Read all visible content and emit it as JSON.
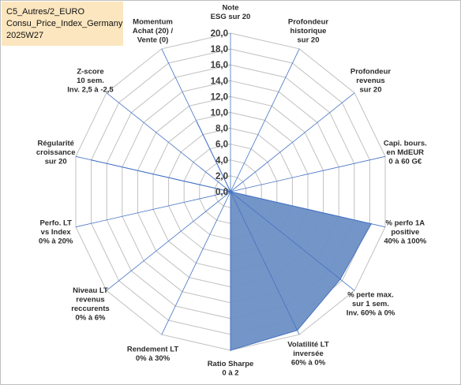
{
  "title_lines": [
    "C5_Autres/2_EURO",
    "Consu_Price_Index_Germany",
    "2025W27"
  ],
  "chart_data": {
    "type": "radar",
    "rmax": 20,
    "ticks": [
      "0,0",
      "2,0",
      "4,0",
      "6,0",
      "8,0",
      "10,0",
      "12,0",
      "14,0",
      "16,0",
      "18,0",
      "20,0"
    ],
    "tick_values": [
      0,
      2,
      4,
      6,
      8,
      10,
      12,
      14,
      16,
      18,
      20
    ],
    "axes": [
      {
        "label": [
          "Note",
          "ESG sur 20"
        ],
        "value": 0
      },
      {
        "label": [
          "Profondeur",
          "historique",
          "sur 20"
        ],
        "value": 0
      },
      {
        "label": [
          "Profondeur",
          "revenus",
          "sur 20"
        ],
        "value": 0
      },
      {
        "label": [
          "Capi. bours.",
          "en MdEUR",
          "0 à 60 G€"
        ],
        "value": 0
      },
      {
        "label": [
          "% perfo 1A",
          "positive",
          "40% à 100%"
        ],
        "value": 18.2
      },
      {
        "label": [
          "% perte max.",
          "sur 1 sem.",
          "Inv. 60% à 0%"
        ],
        "value": 17.7
      },
      {
        "label": [
          "Volatilité LT",
          "inversée",
          "60% à 0%"
        ],
        "value": 19.4
      },
      {
        "label": [
          "Ratio Sharpe",
          "0 à 2"
        ],
        "value": 20
      },
      {
        "label": [
          "Rendement LT",
          "0% à 30%"
        ],
        "value": 0
      },
      {
        "label": [
          "Niveau LT",
          "revenus",
          "reccurents",
          "0% à 6%"
        ],
        "value": 0
      },
      {
        "label": [
          "Perfo. LT",
          "vs Index",
          "0% à 20%"
        ],
        "value": 0
      },
      {
        "label": [
          "Régularité",
          "croissance",
          "sur 20"
        ],
        "value": 17.9
      },
      {
        "label": [
          "Z-score",
          "10 sem.",
          "Inv. 2,5 à -2,5"
        ],
        "value": 0
      },
      {
        "label": [
          "Momentum",
          "Achat (20) /",
          "Vente (0)"
        ],
        "value": 9.7
      }
    ],
    "colors": {
      "fill": "#6d8fc4",
      "stroke": "#4472c4",
      "spoke": "#4472c4",
      "grid": "#c0c0c0"
    }
  }
}
